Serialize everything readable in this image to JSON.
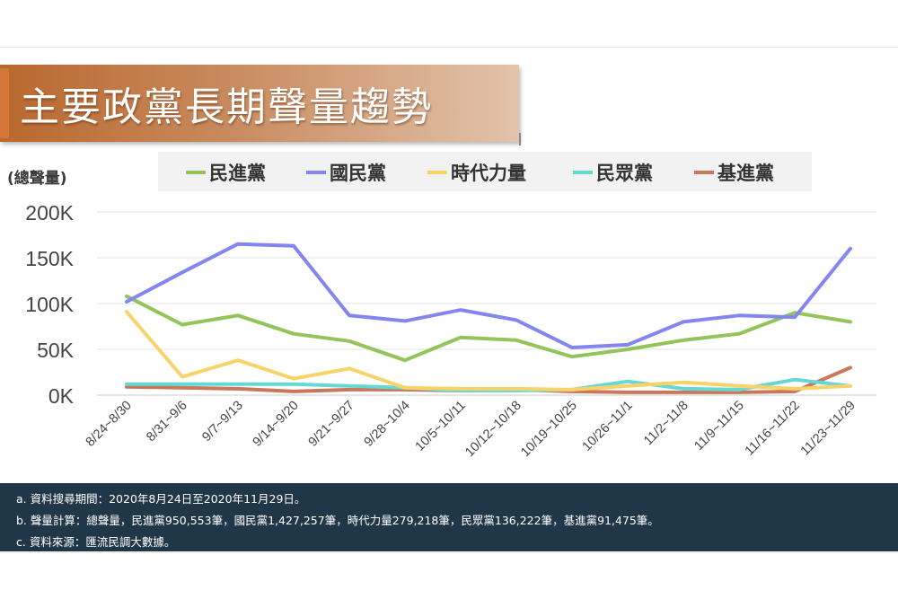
{
  "title": "主要政黨長期聲量趨勢",
  "chart_data": {
    "type": "line",
    "ylabel": "(總聲量)",
    "ylim": [
      0,
      200000
    ],
    "yticks": [
      {
        "value": 0,
        "label": "0K"
      },
      {
        "value": 50000,
        "label": "50K"
      },
      {
        "value": 100000,
        "label": "100K"
      },
      {
        "value": 150000,
        "label": "150K"
      },
      {
        "value": 200000,
        "label": "200K"
      }
    ],
    "categories": [
      "8/24~8/30",
      "8/31~9/6",
      "9/7~9/13",
      "9/14~9/20",
      "9/21~9/27",
      "9/28~10/4",
      "10/5~10/11",
      "10/12~10/18",
      "10/19~10/25",
      "10/26~11/1",
      "11/2~11/8",
      "11/9~11/15",
      "11/16~11/22",
      "11/23~11/29"
    ],
    "grid": true,
    "legend_position": "top",
    "series": [
      {
        "name": "民進黨",
        "color": "#92c45a",
        "values": [
          108000,
          77000,
          87000,
          67000,
          59000,
          38000,
          63000,
          60000,
          42000,
          50000,
          60000,
          67000,
          90000,
          80000
        ]
      },
      {
        "name": "國民黨",
        "color": "#8585f0",
        "values": [
          102000,
          134000,
          165000,
          163000,
          87000,
          81000,
          93000,
          82000,
          52000,
          55000,
          80000,
          87000,
          85000,
          160000
        ]
      },
      {
        "name": "時代力量",
        "color": "#f8d36a",
        "values": [
          91000,
          20000,
          38000,
          18000,
          29000,
          8000,
          7000,
          7000,
          6000,
          10000,
          14000,
          10000,
          7000,
          10000
        ]
      },
      {
        "name": "民眾黨",
        "color": "#66d8d4",
        "values": [
          12000,
          12000,
          12000,
          12000,
          10000,
          8000,
          5000,
          5000,
          6000,
          15000,
          7000,
          6000,
          17000,
          10000
        ]
      },
      {
        "name": "基進黨",
        "color": "#c9785c",
        "values": [
          9000,
          8000,
          7000,
          4000,
          6000,
          6000,
          5000,
          6000,
          4000,
          3000,
          3000,
          3000,
          4000,
          30000
        ]
      }
    ]
  },
  "footer": {
    "line_a": "a. 資料搜尋期間：2020年8月24日至2020年11月29日。",
    "line_b": "b. 聲量計算：總聲量，民進黨950,553筆，國民黨1,427,257筆，時代力量279,218筆，民眾黨136,222筆，基進黨91,475筆。",
    "line_c": "c. 資料來源：匯流民調大數據。"
  }
}
